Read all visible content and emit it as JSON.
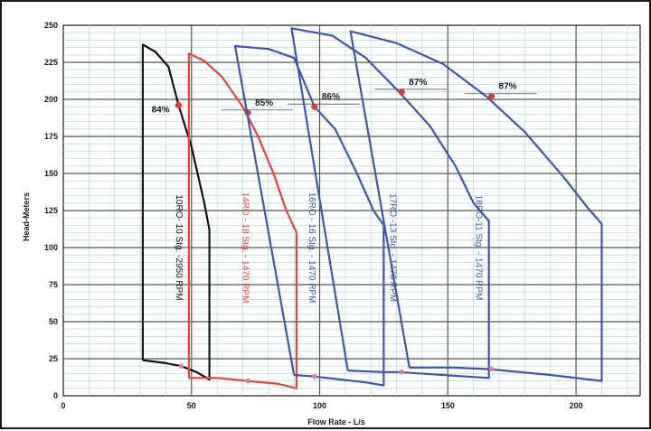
{
  "chart_data": {
    "type": "line",
    "xlabel": "Flow Rate - L/s",
    "ylabel": "Head-Meters",
    "xlim": [
      0,
      225
    ],
    "ylim": [
      0,
      250
    ],
    "x_ticks": [
      "0",
      "50",
      "100",
      "150",
      "200"
    ],
    "y_ticks": [
      "0",
      "25",
      "50",
      "75",
      "100",
      "125",
      "150",
      "175",
      "200",
      "225",
      "250"
    ],
    "grid": true,
    "series": [
      {
        "name": "10RO- 10 Stg. -2950 RPM",
        "color": "#111111",
        "head_curve": [
          [
            31,
            237
          ],
          [
            36,
            232
          ],
          [
            41,
            222
          ],
          [
            45,
            196
          ],
          [
            50,
            168
          ],
          [
            55,
            130
          ],
          [
            57,
            112
          ]
        ],
        "npsh_curve": [
          [
            31,
            24
          ],
          [
            40,
            22
          ],
          [
            46,
            20
          ],
          [
            52,
            16
          ],
          [
            57,
            11
          ]
        ],
        "efficiency_point": {
          "x": 45,
          "y": 196,
          "label": "84%"
        },
        "npsh_marker": {
          "x": 46,
          "y": 20
        }
      },
      {
        "name": "14RO - 18 Stg. - 1470 RPM",
        "color": "#e8413a",
        "head_curve": [
          [
            49,
            231
          ],
          [
            55,
            226
          ],
          [
            62,
            215
          ],
          [
            70,
            195
          ],
          [
            76,
            175
          ],
          [
            82,
            150
          ],
          [
            87,
            125
          ],
          [
            91,
            110
          ]
        ],
        "npsh_curve": [
          [
            49,
            12
          ],
          [
            60,
            12
          ],
          [
            72,
            10
          ],
          [
            84,
            8
          ],
          [
            91,
            5
          ]
        ],
        "efficiency_point": {
          "x": 72,
          "y": 191,
          "label": "85%"
        },
        "npsh_marker": {
          "x": 72,
          "y": 10
        }
      },
      {
        "name": "16RO - 16 Stg. - 1470 RPM",
        "color": "#3d56b0",
        "head_curve": [
          [
            67,
            236
          ],
          [
            80,
            234
          ],
          [
            90,
            228
          ],
          [
            98,
            195
          ],
          [
            106,
            180
          ],
          [
            114,
            152
          ],
          [
            121,
            125
          ],
          [
            125,
            115
          ]
        ],
        "npsh_curve": [
          [
            90,
            14
          ],
          [
            98,
            13
          ],
          [
            108,
            11
          ],
          [
            118,
            9
          ],
          [
            125,
            7
          ]
        ],
        "efficiency_point": {
          "x": 98,
          "y": 195,
          "label": "86%"
        },
        "npsh_marker": {
          "x": 98,
          "y": 13
        }
      },
      {
        "name": "17RO -13 Stg. - 1470 RPM",
        "color": "#3d56b0",
        "head_curve": [
          [
            89,
            248
          ],
          [
            105,
            243
          ],
          [
            118,
            228
          ],
          [
            131,
            205
          ],
          [
            143,
            182
          ],
          [
            153,
            155
          ],
          [
            160,
            130
          ],
          [
            166,
            118
          ]
        ],
        "npsh_curve": [
          [
            111,
            17
          ],
          [
            125,
            16
          ],
          [
            131,
            16
          ],
          [
            148,
            14
          ],
          [
            166,
            12
          ]
        ],
        "efficiency_point": {
          "x": 132,
          "y": 205,
          "label": "87%"
        },
        "npsh_marker": {
          "x": 132,
          "y": 16
        }
      },
      {
        "name": "18RO-11 Stg. - 1470 RPM",
        "color": "#3d56b0",
        "head_curve": [
          [
            112,
            246
          ],
          [
            130,
            238
          ],
          [
            148,
            224
          ],
          [
            165,
            202
          ],
          [
            180,
            178
          ],
          [
            195,
            148
          ],
          [
            204,
            128
          ],
          [
            210,
            116
          ]
        ],
        "npsh_curve": [
          [
            135,
            19
          ],
          [
            152,
            19
          ],
          [
            166,
            18
          ],
          [
            190,
            14
          ],
          [
            210,
            10
          ]
        ],
        "efficiency_point": {
          "x": 167,
          "y": 202,
          "label": "87%"
        },
        "npsh_marker": {
          "x": 167,
          "y": 18
        }
      }
    ]
  }
}
